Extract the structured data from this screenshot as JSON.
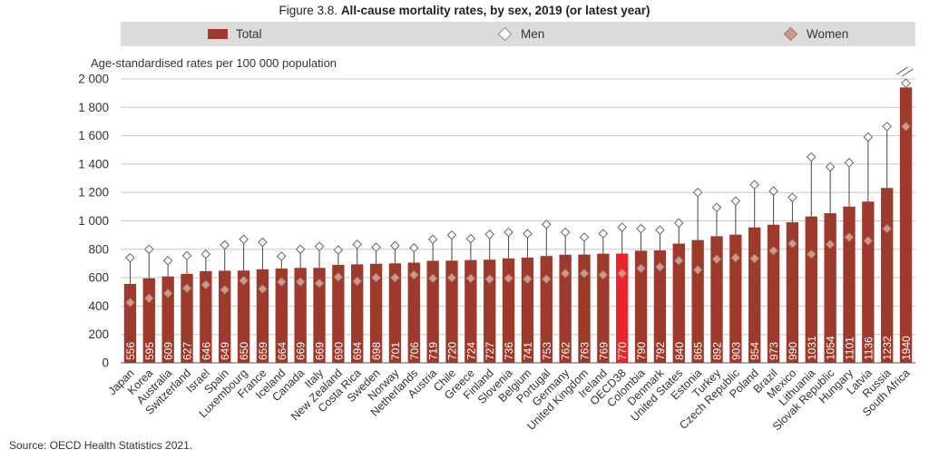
{
  "figure": {
    "number": "Figure 3.8.",
    "title": "All-cause mortality rates, by sex, 2019 (or latest year)",
    "source": "Source: OECD Health Statistics 2021."
  },
  "colors": {
    "bar": "#9e3a2c",
    "highlight": "#e8262b",
    "legend_bg": "#dcdcdc",
    "women_marker": "#c99a8f",
    "label_text": "#ffffff"
  },
  "chart_data": {
    "type": "bar",
    "title": "All-cause mortality rates, by sex, 2019 (or latest year)",
    "ylabel": "Age-standardised rates per 100 000 population",
    "xlabel": "",
    "ylim": [
      0,
      2000
    ],
    "yticks": [
      0,
      200,
      400,
      600,
      800,
      1000,
      1200,
      1400,
      1600,
      1800,
      2000
    ],
    "ytick_labels": [
      "0",
      "200",
      "400",
      "600",
      "800",
      "1 000",
      "1 200",
      "1 400",
      "1 600",
      "1 800",
      "2 000"
    ],
    "legend": [
      "Total",
      "Men",
      "Women"
    ],
    "legend_position": "top",
    "highlight": "OECD38",
    "categories": [
      "Japan",
      "Korea",
      "Australia",
      "Switzerland",
      "Israel",
      "Spain",
      "Luxembourg",
      "France",
      "Iceland",
      "Canada",
      "Italy",
      "New Zealand",
      "Costa Rica",
      "Sweden",
      "Norway",
      "Netherlands",
      "Austria",
      "Chile",
      "Greece",
      "Finland",
      "Slovenia",
      "Belgium",
      "Portugal",
      "Germany",
      "United Kingdom",
      "Ireland",
      "OECD38",
      "Colombia",
      "Denmark",
      "United States",
      "Estonia",
      "Turkey",
      "Czech Republic",
      "Poland",
      "Brazil",
      "Mexico",
      "Lithuania",
      "Slovak Republic",
      "Hungary",
      "Latvia",
      "Russia",
      "South Africa"
    ],
    "series": [
      {
        "name": "Total",
        "values": [
          556,
          595,
          609,
          627,
          646,
          649,
          650,
          659,
          664,
          669,
          669,
          690,
          694,
          698,
          701,
          706,
          719,
          720,
          724,
          727,
          736,
          741,
          753,
          762,
          763,
          769,
          770,
          790,
          792,
          840,
          865,
          892,
          903,
          954,
          973,
          990,
          1031,
          1054,
          1101,
          1136,
          1232,
          1940
        ]
      },
      {
        "name": "Men",
        "values": [
          740,
          800,
          720,
          755,
          765,
          830,
          870,
          850,
          750,
          800,
          820,
          795,
          835,
          815,
          825,
          810,
          870,
          900,
          875,
          905,
          920,
          910,
          975,
          920,
          885,
          910,
          955,
          945,
          935,
          985,
          1200,
          1095,
          1140,
          1255,
          1210,
          1165,
          1450,
          1380,
          1410,
          1590,
          1665,
          1970
        ]
      },
      {
        "name": "Women",
        "values": [
          425,
          455,
          490,
          525,
          550,
          515,
          580,
          520,
          570,
          570,
          560,
          605,
          575,
          600,
          600,
          620,
          595,
          600,
          595,
          590,
          595,
          590,
          590,
          630,
          630,
          620,
          630,
          665,
          675,
          720,
          655,
          730,
          740,
          735,
          790,
          840,
          765,
          835,
          885,
          860,
          945,
          1665
        ]
      }
    ],
    "broken_axis_above": 2000
  }
}
